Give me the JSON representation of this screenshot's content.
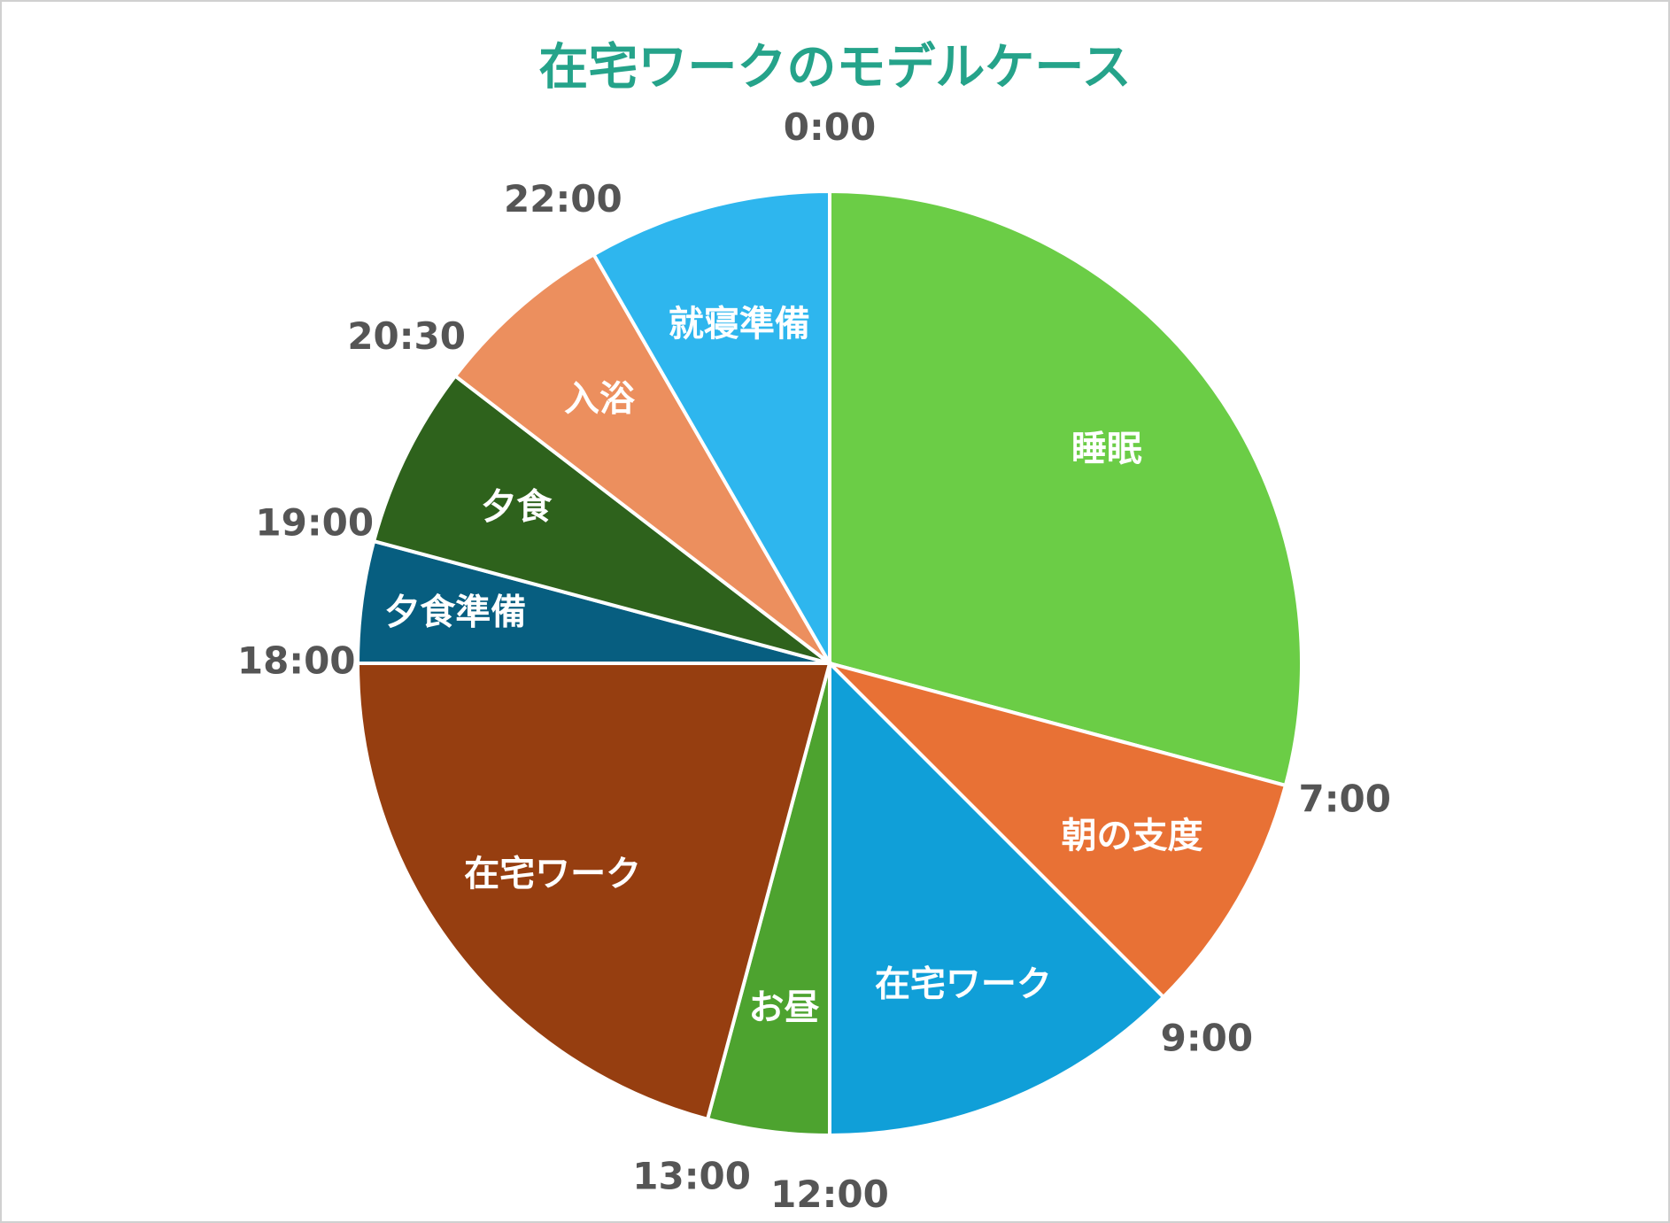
{
  "chart_data": {
    "type": "pie",
    "title": "在宅ワークのモデルケース",
    "categories": [
      "睡眠",
      "朝の支度",
      "在宅ワーク",
      "お昼",
      "在宅ワーク",
      "夕食準備",
      "夕食",
      "入浴",
      "就寝準備"
    ],
    "values": [
      7,
      2,
      3,
      1,
      5,
      1,
      1.5,
      1.5,
      2
    ],
    "colors": [
      "#6bcd46",
      "#e87135",
      "#109fd8",
      "#4da32f",
      "#963e10",
      "#075e80",
      "#2e621c",
      "#ec8f5e",
      "#2eb6ee"
    ],
    "start_labels": [
      "0:00",
      "7:00",
      "9:00",
      "12:00",
      "13:00",
      "18:00",
      "19:00",
      "20:30",
      "22:00"
    ]
  }
}
